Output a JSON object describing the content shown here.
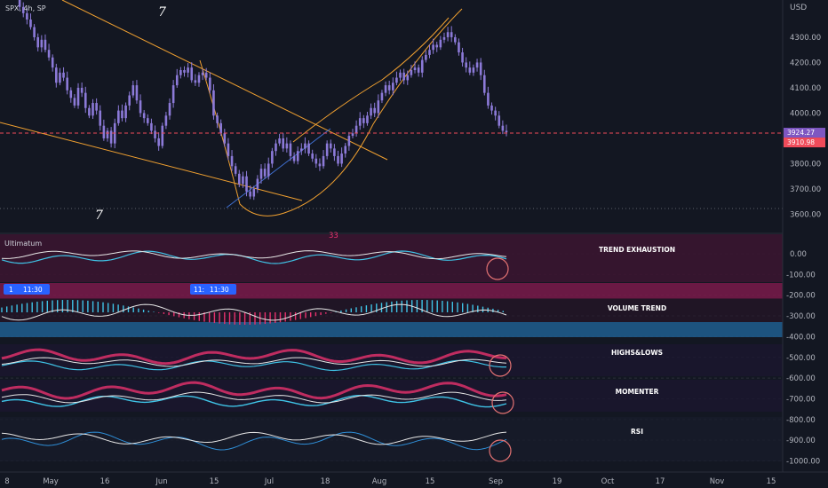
{
  "symbol_label": "SPX, 4h, SP",
  "currency_label": "USD",
  "indicator_name": "Ultimatum",
  "wave_labels": [
    "7",
    "7"
  ],
  "small_marker": "33",
  "session_tags": [
    {
      "icon": "1",
      "time": "11:30"
    },
    {
      "icon": "11:",
      "time": "11:30"
    }
  ],
  "panel_labels": [
    "TREND EXHAUSTION",
    "VOLUME TREND",
    "HIGHS&LOWS",
    "MOMENTER",
    "RSI"
  ],
  "colors": {
    "background": "#131722",
    "candle": "#8c7ad8",
    "trendline": "#f0a030",
    "support_line": "#3f6fd1",
    "price_line": "#f04b5a",
    "cyan": "#3fc3e6",
    "pink": "#e8326e",
    "white_line": "#e6e6e6"
  },
  "chart_data": {
    "type": "candlestick",
    "title": "SPX, 4h, SP",
    "ylabel": "USD",
    "price_axis": {
      "ticks": [
        4300,
        4200,
        4100,
        4000,
        3800,
        3700,
        3600
      ],
      "tick_labels": [
        "4300.00",
        "4200.00",
        "4100.00",
        "4000.00",
        "3800.00",
        "3700.00",
        "3600.00"
      ],
      "ylim": [
        3570,
        4370
      ]
    },
    "last_price": {
      "value": 3924.27,
      "label": "3924.27"
    },
    "previous_close": {
      "value": 3910.98,
      "label": "3910.98"
    },
    "x_axis": {
      "tick_labels": [
        "8",
        "May",
        "16",
        "Jun",
        "15",
        "Jul",
        "18",
        "Aug",
        "15",
        "Sep",
        "19",
        "Oct",
        "17",
        "Nov",
        "15"
      ]
    },
    "series": [
      {
        "name": "SPX",
        "close": [
          4460,
          4420,
          4395,
          4370,
          4340,
          4300,
          4260,
          4290,
          4250,
          4220,
          4180,
          4120,
          4160,
          4140,
          4090,
          4060,
          4030,
          4100,
          4080,
          4020,
          3990,
          4040,
          4010,
          3950,
          3900,
          3930,
          3880,
          3960,
          4010,
          3980,
          4030,
          4070,
          4110,
          4050,
          4000,
          3980,
          3960,
          3930,
          3900,
          3870,
          3950,
          3990,
          4040,
          4110,
          4150,
          4170,
          4160,
          4180,
          4130,
          4120,
          4150,
          4160,
          4140,
          4090,
          3990,
          3960,
          3920,
          3880,
          3830,
          3790,
          3760,
          3720,
          3750,
          3690,
          3670,
          3700,
          3740,
          3780,
          3750,
          3800,
          3850,
          3880,
          3900,
          3860,
          3880,
          3830,
          3810,
          3850,
          3860,
          3880,
          3840,
          3820,
          3800,
          3790,
          3830,
          3880,
          3860,
          3830,
          3800,
          3840,
          3870,
          3910,
          3920,
          3950,
          3980,
          3960,
          3990,
          4020,
          4000,
          4050,
          4080,
          4110,
          4090,
          4120,
          4140,
          4160,
          4130,
          4150,
          4170,
          4180,
          4160,
          4210,
          4230,
          4250,
          4270,
          4260,
          4290,
          4300,
          4320,
          4300,
          4280,
          4240,
          4200,
          4180,
          4160,
          4180,
          4200,
          4150,
          4080,
          4030,
          4010,
          3990,
          3950,
          3930,
          3924
        ]
      }
    ],
    "indicators": [
      {
        "name": "TREND EXHAUSTION",
        "axis_ticks": [
          0,
          -100,
          -200
        ],
        "tick_labels": [
          "0.00",
          "-100.00",
          "-200.00"
        ]
      },
      {
        "name": "VOLUME TREND",
        "axis_ticks": [
          -300,
          -400
        ],
        "tick_labels": [
          "-300.00",
          "-400.00"
        ]
      },
      {
        "name": "HIGHS&LOWS",
        "axis_ticks": [
          -500,
          -600
        ],
        "tick_labels": [
          "-500.00",
          "-600.00"
        ]
      },
      {
        "name": "MOMENTER",
        "axis_ticks": [
          -700,
          -800
        ],
        "tick_labels": [
          "-700.00",
          "-800.00"
        ]
      },
      {
        "name": "RSI",
        "axis_ticks": [
          -900,
          -1000
        ],
        "tick_labels": [
          "-900.00",
          "-1000.00"
        ]
      }
    ]
  }
}
